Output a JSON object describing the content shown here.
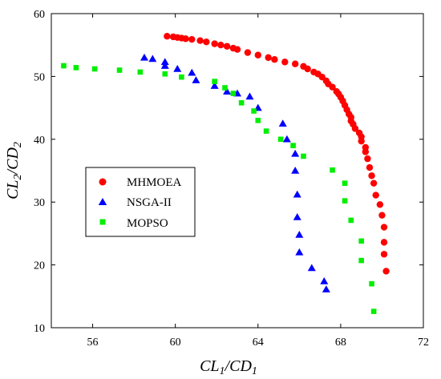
{
  "chart_data": {
    "type": "scatter",
    "xlabel": "CL1/CD1",
    "ylabel": "CL2/CD2",
    "xlabel_parts": {
      "a": "CL",
      "a_sub": "1",
      "sep": "/",
      "b": "CD",
      "b_sub": "1"
    },
    "ylabel_parts": {
      "a": "CL",
      "a_sub": "2",
      "sep": "/",
      "b": "CD",
      "b_sub": "2"
    },
    "xlim": [
      54,
      72
    ],
    "ylim": [
      10,
      60
    ],
    "xticks": [
      56,
      60,
      64,
      68,
      72
    ],
    "yticks": [
      10,
      20,
      30,
      40,
      50,
      60
    ],
    "grid": false,
    "legend_position": "middle-left",
    "series": [
      {
        "name": "MHMOEA",
        "marker": "circle",
        "color": "#ff0000",
        "points": [
          [
            59.6,
            56.4
          ],
          [
            59.9,
            56.3
          ],
          [
            60.1,
            56.2
          ],
          [
            60.3,
            56.1
          ],
          [
            60.5,
            56.0
          ],
          [
            60.8,
            55.9
          ],
          [
            61.2,
            55.7
          ],
          [
            61.5,
            55.5
          ],
          [
            61.9,
            55.2
          ],
          [
            62.2,
            55.0
          ],
          [
            62.5,
            54.8
          ],
          [
            62.8,
            54.5
          ],
          [
            63.0,
            54.3
          ],
          [
            63.5,
            53.8
          ],
          [
            64.0,
            53.4
          ],
          [
            64.5,
            53.0
          ],
          [
            64.8,
            52.7
          ],
          [
            65.3,
            52.3
          ],
          [
            65.8,
            52.0
          ],
          [
            66.2,
            51.6
          ],
          [
            66.4,
            51.2
          ],
          [
            66.7,
            50.7
          ],
          [
            66.9,
            50.4
          ],
          [
            67.1,
            49.9
          ],
          [
            67.3,
            49.3
          ],
          [
            67.4,
            48.8
          ],
          [
            67.6,
            48.3
          ],
          [
            67.8,
            47.6
          ],
          [
            67.9,
            47.2
          ],
          [
            68.0,
            46.7
          ],
          [
            68.1,
            46.1
          ],
          [
            68.2,
            45.4
          ],
          [
            68.3,
            44.7
          ],
          [
            68.4,
            44.0
          ],
          [
            68.5,
            43.5
          ],
          [
            68.5,
            42.9
          ],
          [
            68.6,
            42.4
          ],
          [
            68.7,
            41.7
          ],
          [
            68.9,
            41.0
          ],
          [
            69.0,
            40.4
          ],
          [
            69.0,
            39.7
          ],
          [
            69.2,
            38.7
          ],
          [
            69.2,
            38.0
          ],
          [
            69.3,
            36.9
          ],
          [
            69.4,
            35.5
          ],
          [
            69.5,
            34.2
          ],
          [
            69.6,
            33.0
          ],
          [
            69.7,
            31.1
          ],
          [
            69.9,
            29.6
          ],
          [
            70.0,
            27.9
          ],
          [
            70.1,
            26.0
          ],
          [
            70.1,
            23.6
          ],
          [
            70.1,
            21.7
          ],
          [
            70.2,
            19.0
          ]
        ]
      },
      {
        "name": "NSGA-II",
        "marker": "triangle",
        "color": "#0000ff",
        "points": [
          [
            58.5,
            53.0
          ],
          [
            58.9,
            52.8
          ],
          [
            59.5,
            52.3
          ],
          [
            59.5,
            51.7
          ],
          [
            60.1,
            51.2
          ],
          [
            60.8,
            50.6
          ],
          [
            61.0,
            49.4
          ],
          [
            61.9,
            48.5
          ],
          [
            62.5,
            47.6
          ],
          [
            63.0,
            47.3
          ],
          [
            63.6,
            46.8
          ],
          [
            64.0,
            45.0
          ],
          [
            65.2,
            42.5
          ],
          [
            65.4,
            40.0
          ],
          [
            65.8,
            37.7
          ],
          [
            65.8,
            35.0
          ],
          [
            65.9,
            31.2
          ],
          [
            65.9,
            27.6
          ],
          [
            66.0,
            24.8
          ],
          [
            66.0,
            22.0
          ],
          [
            66.6,
            19.5
          ],
          [
            67.2,
            17.4
          ],
          [
            67.3,
            16.1
          ]
        ]
      },
      {
        "name": "MOPSO",
        "marker": "square",
        "color": "#00ee00",
        "points": [
          [
            54.6,
            51.7
          ],
          [
            55.2,
            51.4
          ],
          [
            56.1,
            51.2
          ],
          [
            57.3,
            51.0
          ],
          [
            58.3,
            50.7
          ],
          [
            59.5,
            50.4
          ],
          [
            60.3,
            49.9
          ],
          [
            61.9,
            49.2
          ],
          [
            62.4,
            48.2
          ],
          [
            62.8,
            47.3
          ],
          [
            63.2,
            45.8
          ],
          [
            63.8,
            44.5
          ],
          [
            64.0,
            43.0
          ],
          [
            64.4,
            41.3
          ],
          [
            65.1,
            40.0
          ],
          [
            65.7,
            39.0
          ],
          [
            66.2,
            37.3
          ],
          [
            67.6,
            35.1
          ],
          [
            68.2,
            33.0
          ],
          [
            68.2,
            30.2
          ],
          [
            68.5,
            27.1
          ],
          [
            69.0,
            23.8
          ],
          [
            69.0,
            20.7
          ],
          [
            69.5,
            17.0
          ],
          [
            69.6,
            12.6
          ]
        ]
      }
    ]
  },
  "legend": {
    "items": [
      "MHMOEA",
      "NSGA-II",
      "MOPSO"
    ]
  }
}
